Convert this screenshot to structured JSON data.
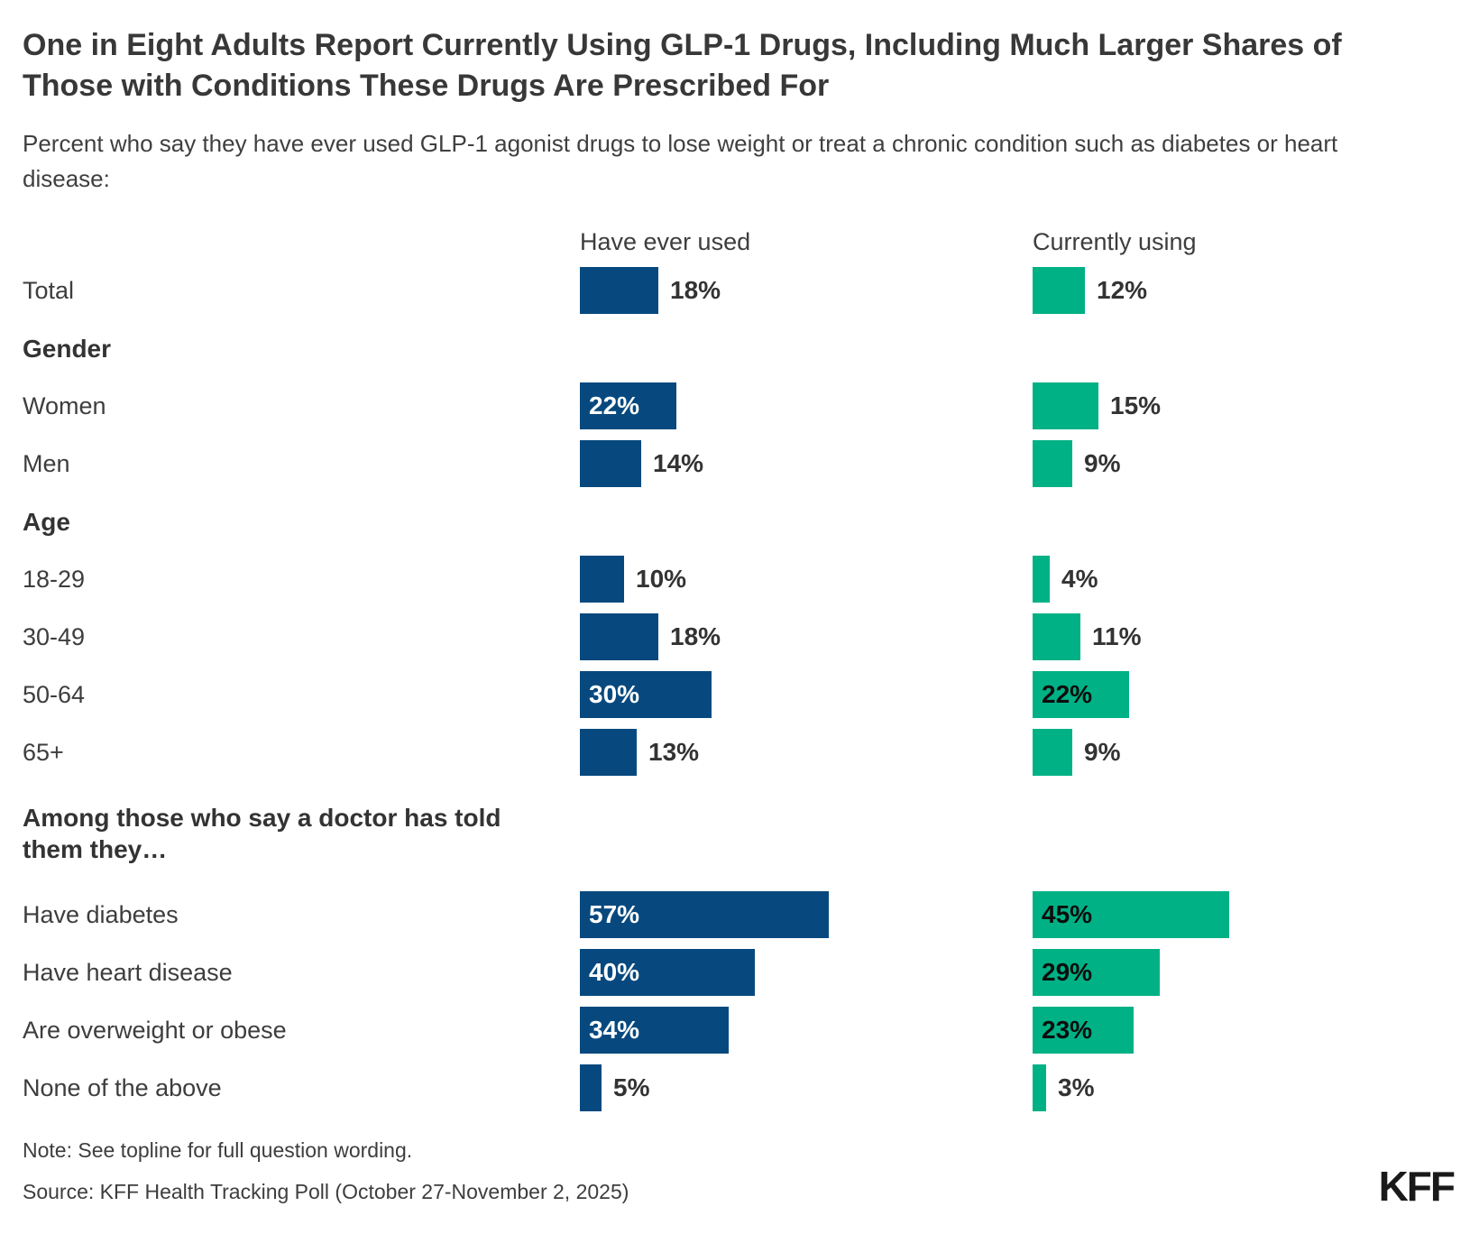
{
  "header": {
    "title": "One in Eight Adults Report Currently Using GLP-1 Drugs, Including Much Larger Shares of Those with Conditions These Drugs Are Prescribed For",
    "subtitle": "Percent who say they have ever used GLP-1 agonist drugs to lose weight or treat a chronic condition such as diabetes or heart disease:"
  },
  "chart_data": {
    "type": "bar",
    "orientation": "horizontal",
    "unit": "%",
    "xlim": [
      0,
      60
    ],
    "series_headers": [
      "Have ever used",
      "Currently using"
    ],
    "colors": {
      "have_ever_used": "#07497e",
      "currently_using": "#00b185"
    },
    "label_inside_threshold": 20,
    "rows": [
      {
        "kind": "data",
        "label": "Total",
        "have_ever_used": 18,
        "currently_using": 12
      },
      {
        "kind": "section",
        "label": "Gender"
      },
      {
        "kind": "data",
        "label": "Women",
        "have_ever_used": 22,
        "currently_using": 15
      },
      {
        "kind": "data",
        "label": "Men",
        "have_ever_used": 14,
        "currently_using": 9
      },
      {
        "kind": "section",
        "label": "Age"
      },
      {
        "kind": "data",
        "label": "18-29",
        "have_ever_used": 10,
        "currently_using": 4
      },
      {
        "kind": "data",
        "label": "30-49",
        "have_ever_used": 18,
        "currently_using": 11
      },
      {
        "kind": "data",
        "label": "50-64",
        "have_ever_used": 30,
        "currently_using": 22
      },
      {
        "kind": "data",
        "label": "65+",
        "have_ever_used": 13,
        "currently_using": 9
      },
      {
        "kind": "section",
        "label": "Among those who say a doctor has told them they…",
        "two_line": true
      },
      {
        "kind": "data",
        "label": "Have diabetes",
        "have_ever_used": 57,
        "currently_using": 45
      },
      {
        "kind": "data",
        "label": "Have heart disease",
        "have_ever_used": 40,
        "currently_using": 29
      },
      {
        "kind": "data",
        "label": "Are overweight or obese",
        "have_ever_used": 34,
        "currently_using": 23
      },
      {
        "kind": "data",
        "label": "None of the above",
        "have_ever_used": 5,
        "currently_using": 3
      }
    ]
  },
  "footer": {
    "note": "Note: See topline for full question wording.",
    "source": "Source: KFF Health Tracking Poll (October 27-November 2, 2025)",
    "logo": "KFF"
  }
}
